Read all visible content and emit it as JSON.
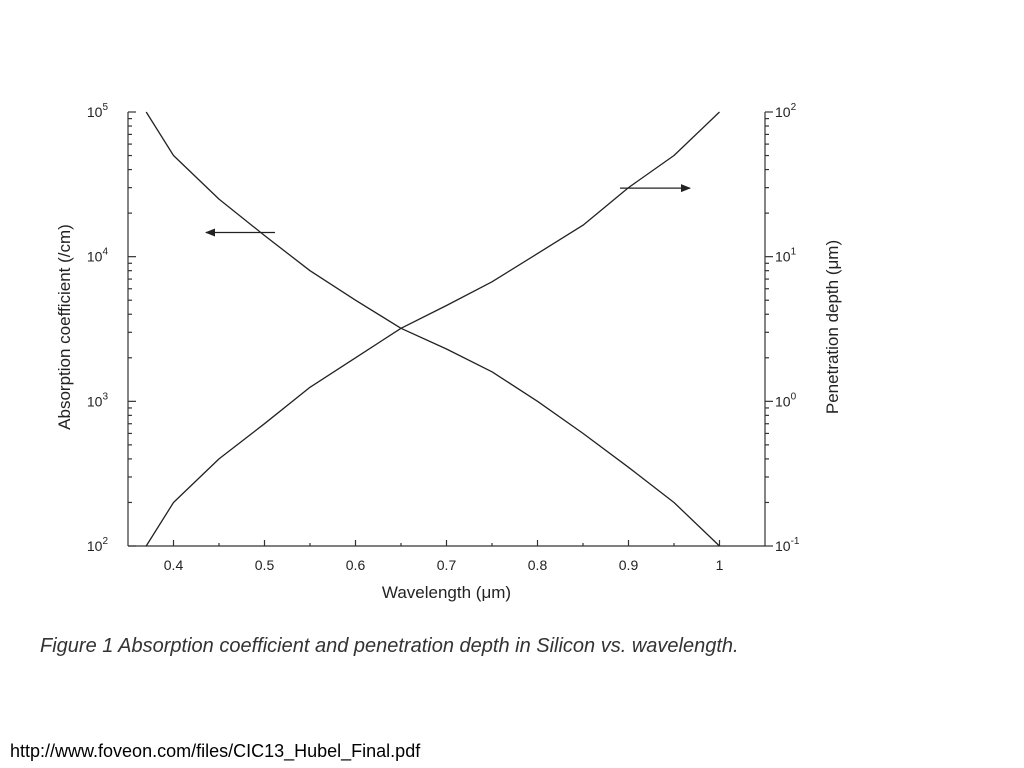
{
  "chart_data": {
    "type": "line",
    "xlabel": "Wavelength (μm)",
    "ylabel_left": "Absorption coefficient (/cm)",
    "ylabel_right": "Penetration depth (μm)",
    "x_ticks": [
      "0.4",
      "0.5",
      "0.6",
      "0.7",
      "0.8",
      "0.9",
      "1"
    ],
    "xlim": [
      0.35,
      1.05
    ],
    "y_left_scale": "log",
    "y_left_lim": [
      100,
      100000
    ],
    "y_left_ticks": [
      {
        "value": 100,
        "base": "10",
        "exp": "2"
      },
      {
        "value": 1000,
        "base": "10",
        "exp": "3"
      },
      {
        "value": 10000,
        "base": "10",
        "exp": "4"
      },
      {
        "value": 100000,
        "base": "10",
        "exp": "5"
      }
    ],
    "y_right_scale": "log",
    "y_right_lim": [
      0.1,
      100
    ],
    "y_right_ticks": [
      {
        "value": 0.1,
        "base": "10",
        "exp": "-1"
      },
      {
        "value": 1,
        "base": "10",
        "exp": "0"
      },
      {
        "value": 10,
        "base": "10",
        "exp": "1"
      },
      {
        "value": 100,
        "base": "10",
        "exp": "2"
      }
    ],
    "grid": false,
    "series": [
      {
        "axis": "left",
        "arrow_direction": "left",
        "x": [
          0.37,
          0.4,
          0.45,
          0.5,
          0.55,
          0.6,
          0.65,
          0.7,
          0.75,
          0.8,
          0.85,
          0.9,
          0.95,
          1.0
        ],
        "y": [
          100000,
          50000,
          25000,
          14000,
          8000,
          5000,
          3200,
          2300,
          1600,
          1000,
          600,
          350,
          200,
          100
        ]
      },
      {
        "axis": "right",
        "arrow_direction": "right",
        "x": [
          0.37,
          0.4,
          0.45,
          0.5,
          0.55,
          0.6,
          0.65,
          0.7,
          0.75,
          0.8,
          0.85,
          0.9,
          0.95,
          1.0
        ],
        "y": [
          0.1,
          0.2,
          0.4,
          0.7,
          1.25,
          2,
          3.2,
          4.6,
          6.7,
          10.5,
          16.5,
          30,
          50,
          100
        ]
      }
    ]
  },
  "caption": "Figure 1 Absorption coefficient and penetration depth in Silicon vs. wavelength.",
  "source_url": "http://www.foveon.com/files/CIC13_Hubel_Final.pdf"
}
